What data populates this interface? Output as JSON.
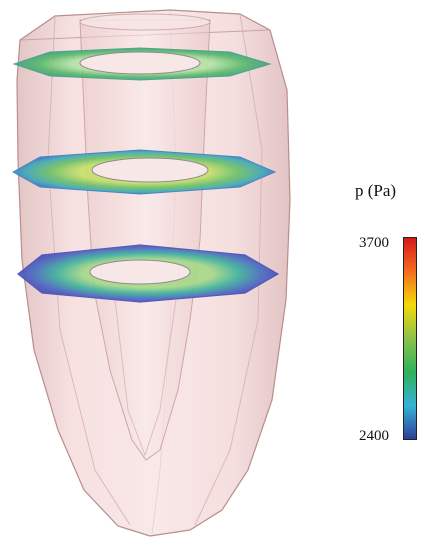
{
  "legend": {
    "title": "p (Pa)",
    "max_label": "3700",
    "min_label": "2400",
    "gradient_colors": [
      "#d7191c",
      "#f46d1f",
      "#f5d90a",
      "#8bc34a",
      "#2fb15a",
      "#35b3d6",
      "#2f3f99"
    ]
  },
  "colors": {
    "shell_fill": "#f2c9c9",
    "shell_edge": "#c89b9b",
    "inner_fill": "#f7dede",
    "ring_blue": "#5b5fc7",
    "ring_green": "#7fc97f"
  }
}
